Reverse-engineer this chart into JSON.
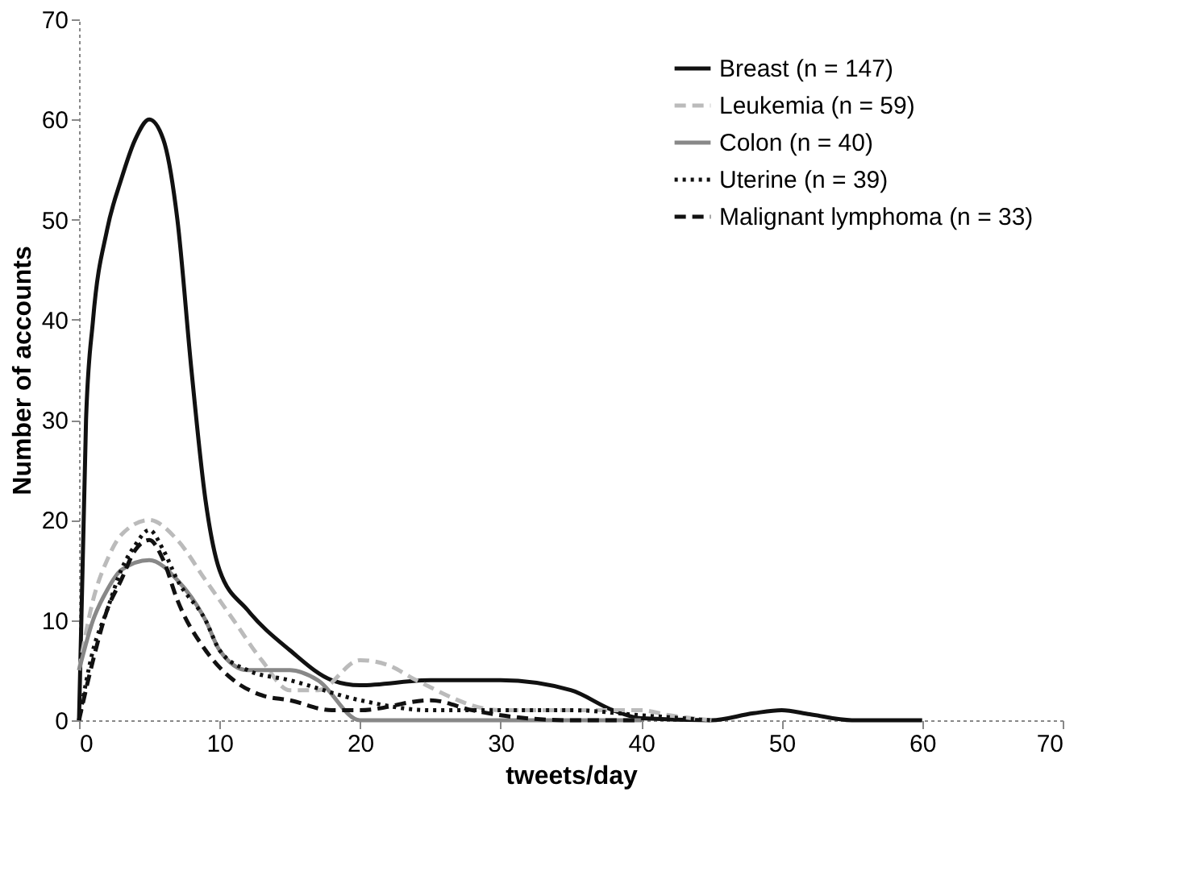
{
  "chart_data": {
    "type": "line",
    "xlabel": "tweets/day",
    "ylabel": "Number of accounts",
    "xlim": [
      0,
      70
    ],
    "ylim": [
      0,
      70
    ],
    "xticks": [
      0,
      10,
      20,
      30,
      40,
      50,
      60,
      70
    ],
    "yticks": [
      0,
      10,
      20,
      30,
      40,
      50,
      60,
      70
    ],
    "grid": false,
    "legend": "top right",
    "marker": "none",
    "series": [
      {
        "name": "Breast (n = 147)",
        "color": "#111111",
        "line_style": "solid",
        "x": [
          0,
          0.5,
          1,
          2,
          3,
          4,
          5,
          6,
          7,
          8,
          9,
          10,
          12,
          15,
          18,
          20,
          25,
          30,
          35,
          38,
          40,
          45,
          48,
          50,
          52,
          55,
          60
        ],
        "values": [
          0,
          30,
          40,
          49,
          54,
          58,
          60,
          58,
          50,
          35,
          22,
          15,
          11,
          7,
          4,
          3.5,
          4,
          4,
          3,
          1,
          0.2,
          0,
          0.7,
          1,
          0.6,
          0,
          0
        ]
      },
      {
        "name": "Leukemia (n = 59)",
        "color": "#bbbbbb",
        "line_style": "dashed",
        "x": [
          0,
          1,
          2,
          3,
          5,
          7,
          9,
          11,
          13,
          15,
          17,
          20,
          22,
          24,
          30,
          40,
          42,
          45
        ],
        "values": [
          5,
          12,
          16,
          18.5,
          20,
          18,
          14,
          10,
          6,
          3,
          3,
          6,
          5.5,
          4,
          1,
          1,
          0.5,
          0
        ]
      },
      {
        "name": "Colon (n = 40)",
        "color": "#888888",
        "line_style": "solid",
        "x": [
          0,
          1,
          2,
          3,
          5,
          7,
          9,
          10,
          12,
          15,
          17,
          20,
          30,
          40
        ],
        "values": [
          5,
          10,
          13,
          15,
          16,
          14,
          10,
          7,
          5,
          5,
          4,
          0,
          0,
          0
        ]
      },
      {
        "name": "Uterine (n = 39)",
        "color": "#111111",
        "line_style": "dotted",
        "x": [
          0,
          1,
          2,
          3,
          4,
          5,
          6,
          7,
          9,
          10,
          12,
          15,
          20,
          25,
          30,
          35,
          40,
          45
        ],
        "values": [
          0,
          7,
          11,
          15,
          17.5,
          19,
          17,
          14,
          10,
          7,
          5,
          4,
          2,
          1,
          1,
          1,
          0.5,
          0
        ]
      },
      {
        "name": "Malignant lymphoma (n = 33)",
        "color": "#111111",
        "line_style": "dashed",
        "x": [
          0,
          1,
          2,
          3,
          4,
          5,
          6,
          7,
          9,
          11,
          13,
          15,
          18,
          20,
          25,
          28,
          30,
          35,
          40
        ],
        "values": [
          0,
          6,
          11,
          14,
          17,
          18,
          16,
          12,
          7,
          4,
          2.5,
          2,
          1,
          1,
          2,
          1,
          0.5,
          0,
          0
        ]
      }
    ]
  }
}
